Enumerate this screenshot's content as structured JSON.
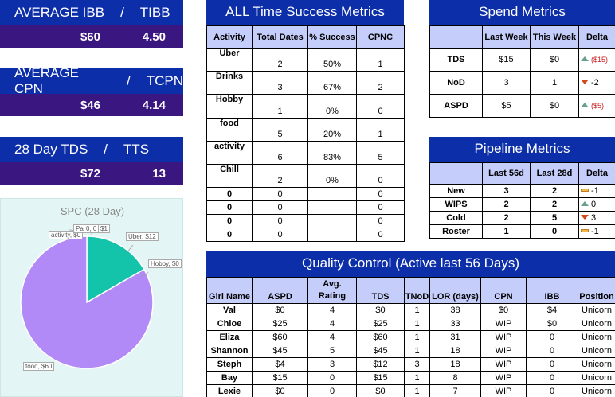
{
  "kpis": [
    {
      "label_a": "AVERAGE IBB",
      "sep": "/",
      "label_b": "TIBB",
      "value_a": "$60",
      "value_b": "4.50"
    },
    {
      "label_a": "AVERAGE CPN",
      "sep": "/",
      "label_b": "TCPN",
      "value_a": "$46",
      "value_b": "4.14"
    },
    {
      "label_a": "28 Day TDS",
      "sep": "/",
      "label_b": "TTS",
      "value_a": "$72",
      "value_b": "13"
    }
  ],
  "pie": {
    "title": "SPC (28 Day)",
    "labels": {
      "activity": "activity, $0",
      "pa": "Pa",
      "zero": "0, 0",
      "d1": "$1",
      "uber": "Uber, $12",
      "hobby": "Hobby, $0",
      "food": "food, $60"
    }
  },
  "chart_data": {
    "type": "pie",
    "title": "SPC (28 Day)",
    "slices": [
      {
        "name": "Uber",
        "value": 12,
        "color": "#14c4aa"
      },
      {
        "name": "food",
        "value": 60,
        "color": "#b18af7"
      },
      {
        "name": "Hobby",
        "value": 0
      },
      {
        "name": "activity",
        "value": 0
      }
    ]
  },
  "success": {
    "title": "ALL Time Success Metrics",
    "headers": [
      "Activity",
      "Total Dates",
      "% Success",
      "CPNC"
    ],
    "rows": [
      [
        "Uber",
        "2",
        "50%",
        "1"
      ],
      [
        "Drinks",
        "3",
        "67%",
        "2"
      ],
      [
        "Hobby",
        "1",
        "0%",
        "0"
      ],
      [
        "food",
        "5",
        "20%",
        "1"
      ],
      [
        "activity",
        "6",
        "83%",
        "5"
      ],
      [
        "Chill",
        "2",
        "0%",
        "0"
      ],
      [
        "0",
        "0",
        "",
        "0"
      ],
      [
        "0",
        "0",
        "",
        "0"
      ],
      [
        "0",
        "0",
        "",
        "0"
      ],
      [
        "0",
        "0",
        "",
        "0"
      ]
    ]
  },
  "spend": {
    "title": "Spend Metrics",
    "headers": [
      "",
      "Last Week",
      "This Week",
      "Delta"
    ],
    "rows": [
      {
        "label": "TDS",
        "last": "$15",
        "this": "$0",
        "delta": "($15)",
        "trend": "up"
      },
      {
        "label": "NoD",
        "last": "3",
        "this": "1",
        "delta": "-2",
        "trend": "down"
      },
      {
        "label": "ASPD",
        "last": "$5",
        "this": "$0",
        "delta": "($5)",
        "trend": "up"
      }
    ]
  },
  "pipeline": {
    "title": "Pipeline Metrics",
    "headers": [
      "",
      "Last 56d",
      "Last 28d",
      "Delta"
    ],
    "rows": [
      {
        "label": "New",
        "a": "3",
        "b": "2",
        "delta": "-1",
        "trend": "flat"
      },
      {
        "label": "WIPS",
        "a": "2",
        "b": "2",
        "delta": "0",
        "trend": "up"
      },
      {
        "label": "Cold",
        "a": "2",
        "b": "5",
        "delta": "3",
        "trend": "down"
      },
      {
        "label": "Roster",
        "a": "1",
        "b": "0",
        "delta": "-1",
        "trend": "flat"
      }
    ]
  },
  "quality": {
    "title": "Quality Control (Active last 56 Days)",
    "headers": [
      "Girl Name",
      "ASPD",
      "Avg. Rating",
      "TDS",
      "TNoD",
      "LOR (days)",
      "CPN",
      "IBB",
      "Position"
    ],
    "rows": [
      [
        "Val",
        "$0",
        "4",
        "$0",
        "1",
        "38",
        "$0",
        "$4",
        "Unicorn"
      ],
      [
        "Chloe",
        "$25",
        "4",
        "$25",
        "1",
        "33",
        "WIP",
        "$0",
        "Unicorn"
      ],
      [
        "Eliza",
        "$60",
        "4",
        "$60",
        "1",
        "31",
        "WIP",
        "0",
        "Unicorn"
      ],
      [
        "Shannon",
        "$45",
        "5",
        "$45",
        "1",
        "18",
        "WIP",
        "0",
        "Unicorn"
      ],
      [
        "Steph",
        "$4",
        "3",
        "$12",
        "3",
        "18",
        "WIP",
        "0",
        "Unicorn"
      ],
      [
        "Bay",
        "$15",
        "0",
        "$15",
        "1",
        "8",
        "WIP",
        "0",
        "Unicorn"
      ],
      [
        "Lexie",
        "$0",
        "0",
        "$0",
        "1",
        "7",
        "WIP",
        "0",
        "Unicorn"
      ]
    ]
  }
}
